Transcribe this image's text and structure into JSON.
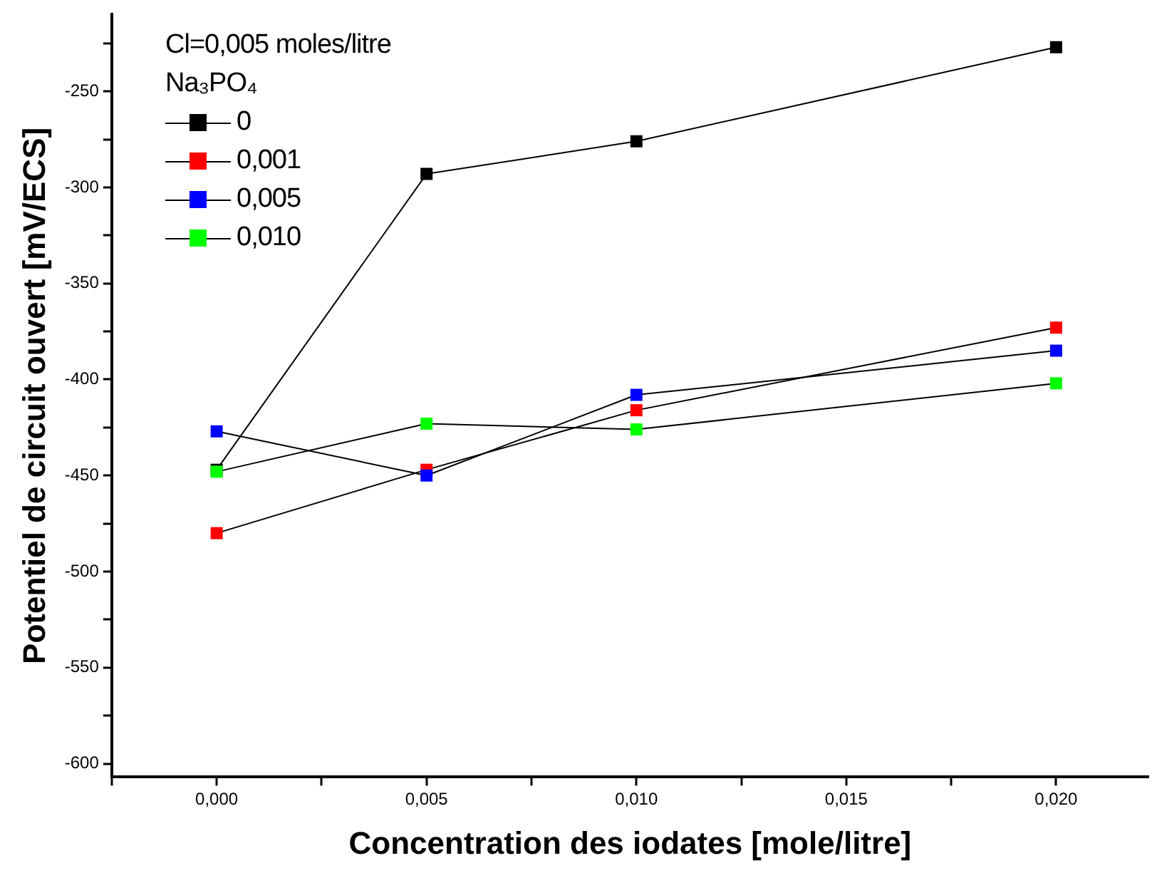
{
  "chart_data": {
    "type": "line",
    "xlabel": "Concentration des iodates [mole/litre]",
    "ylabel": "Potentiel de circuit ouvert [mV/ECS]",
    "legend_title": "Na₃PO₄",
    "annotations": [
      "Cl=0,005 moles/litre"
    ],
    "x": [
      0,
      0.005,
      0.01,
      0.02
    ],
    "series": [
      {
        "name": "0",
        "color": "#000000",
        "values": [
          -447,
          -293,
          -276,
          -227
        ]
      },
      {
        "name": "0,001",
        "color": "#ff0000",
        "values": [
          -480,
          -447,
          -416,
          -373
        ]
      },
      {
        "name": "0,005",
        "color": "#0000ff",
        "values": [
          -427,
          -450,
          -408,
          -385
        ]
      },
      {
        "name": "0,010",
        "color": "#00ff00",
        "values": [
          -448,
          -423,
          -426,
          -402
        ]
      }
    ],
    "xlim": [
      -0.0025,
      0.0222
    ],
    "xticks": [
      {
        "value": -0.0025,
        "label": null
      },
      {
        "value": 0,
        "label": "0,000"
      },
      {
        "value": 0.0025,
        "label": null
      },
      {
        "value": 0.005,
        "label": "0,005"
      },
      {
        "value": 0.0075,
        "label": null
      },
      {
        "value": 0.01,
        "label": "0,010"
      },
      {
        "value": 0.0125,
        "label": null
      },
      {
        "value": 0.015,
        "label": "0,015"
      },
      {
        "value": 0.0175,
        "label": null
      },
      {
        "value": 0.02,
        "label": "0,020"
      }
    ],
    "ylim": [
      -607,
      -210
    ],
    "yticks": [
      {
        "value": -600,
        "label": "-600"
      },
      {
        "value": -575,
        "label": null
      },
      {
        "value": -550,
        "label": "-550"
      },
      {
        "value": -525,
        "label": null
      },
      {
        "value": -500,
        "label": "-500"
      },
      {
        "value": -475,
        "label": null
      },
      {
        "value": -450,
        "label": "-450"
      },
      {
        "value": -425,
        "label": null
      },
      {
        "value": -400,
        "label": "-400"
      },
      {
        "value": -375,
        "label": null
      },
      {
        "value": -350,
        "label": "-350"
      },
      {
        "value": -325,
        "label": null
      },
      {
        "value": -300,
        "label": "-300"
      },
      {
        "value": -275,
        "label": null
      },
      {
        "value": -250,
        "label": "-250"
      },
      {
        "value": -225,
        "label": null
      }
    ],
    "grid": false,
    "legend": "top left",
    "marker": "square",
    "line_style": "solid"
  }
}
